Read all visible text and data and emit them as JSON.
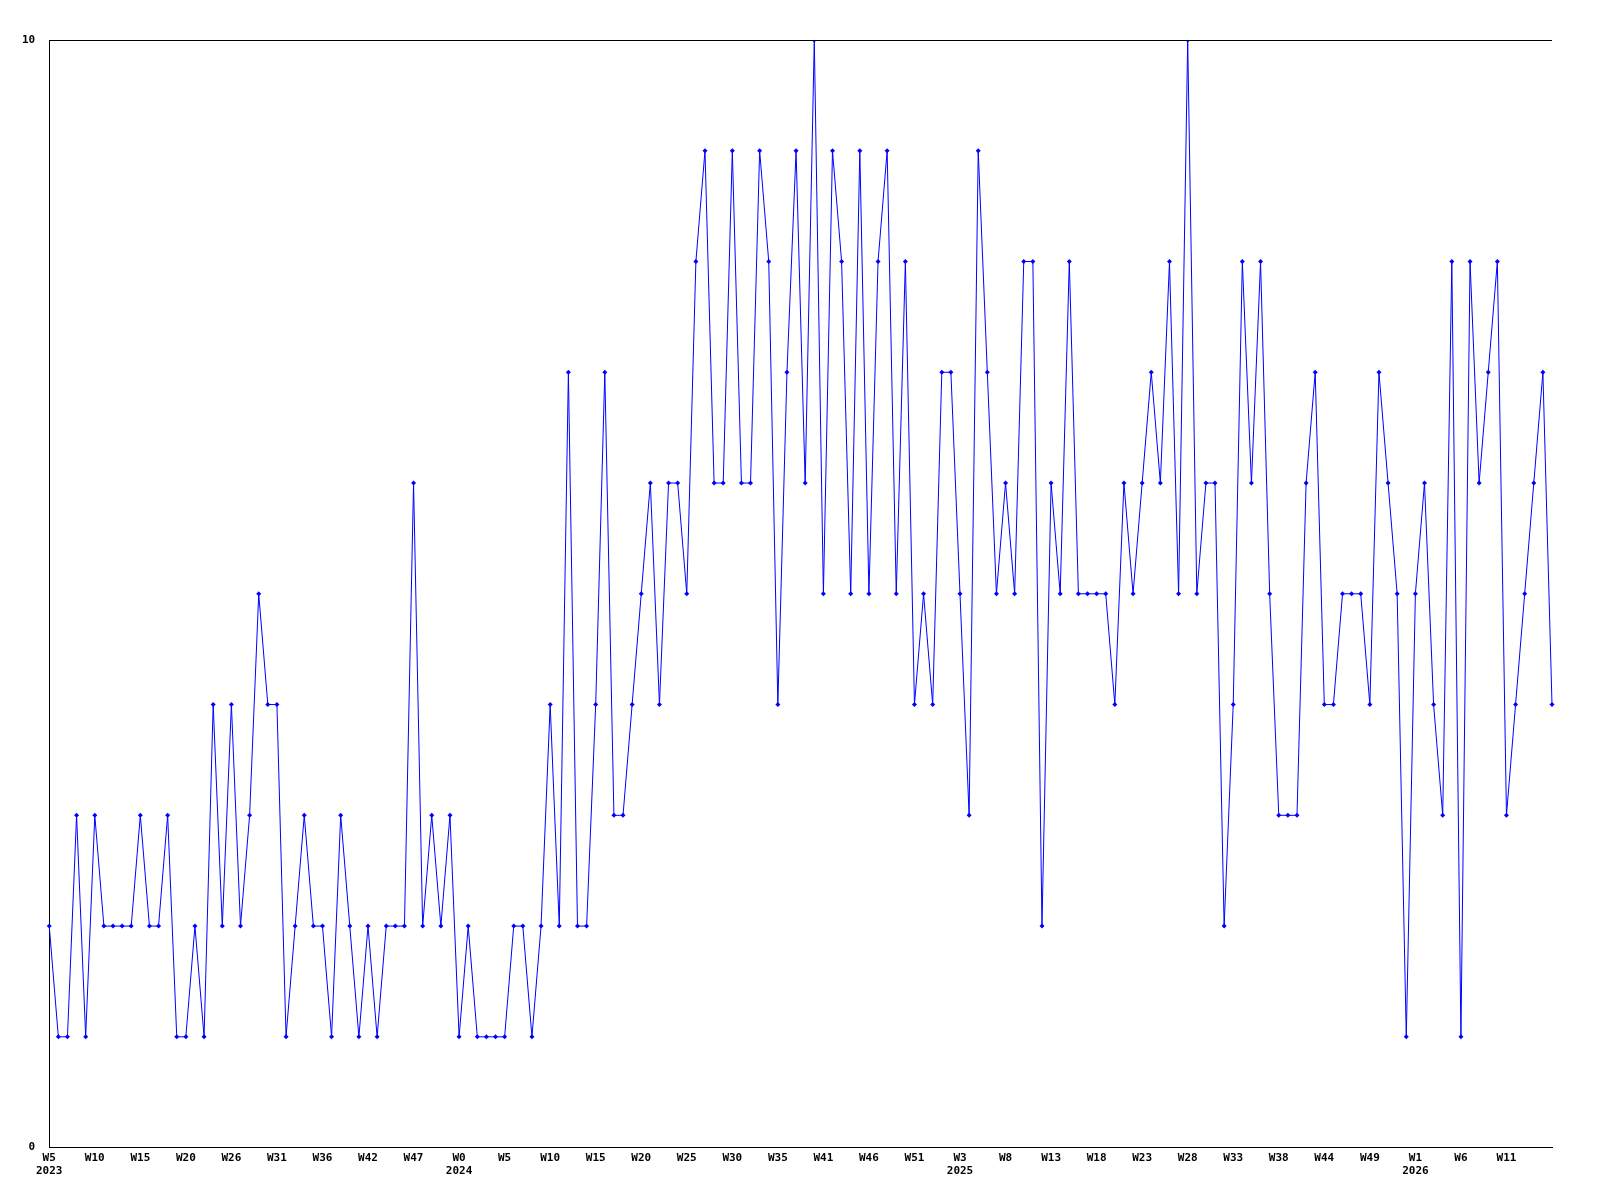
{
  "chart_data": {
    "type": "line",
    "categories": [
      "W5\n2023",
      null,
      null,
      null,
      null,
      "W10",
      null,
      null,
      null,
      null,
      "W15",
      null,
      null,
      null,
      null,
      "W20",
      null,
      null,
      null,
      null,
      "W26",
      null,
      null,
      null,
      null,
      "W31",
      null,
      null,
      null,
      null,
      "W36",
      null,
      null,
      null,
      null,
      "W42",
      null,
      null,
      null,
      null,
      "W47",
      null,
      null,
      null,
      null,
      "W0\n2024",
      null,
      null,
      null,
      null,
      "W5",
      null,
      null,
      null,
      null,
      "W10",
      null,
      null,
      null,
      null,
      "W15",
      null,
      null,
      null,
      null,
      "W20",
      null,
      null,
      null,
      null,
      "W25",
      null,
      null,
      null,
      null,
      "W30",
      null,
      null,
      null,
      null,
      "W35",
      null,
      null,
      null,
      null,
      "W41",
      null,
      null,
      null,
      null,
      "W46",
      null,
      null,
      null,
      null,
      "W51",
      null,
      null,
      null,
      null,
      "W3\n2025",
      null,
      null,
      null,
      null,
      "W8",
      null,
      null,
      null,
      null,
      "W13",
      null,
      null,
      null,
      null,
      "W18",
      null,
      null,
      null,
      null,
      "W23",
      null,
      null,
      null,
      null,
      "W28",
      null,
      null,
      null,
      null,
      "W33",
      null,
      null,
      null,
      null,
      "W38",
      null,
      null,
      null,
      null,
      "W44",
      null,
      null,
      null,
      null,
      "W49",
      null,
      null,
      null,
      null,
      "W1\n2026",
      null,
      null,
      null,
      null,
      "W6",
      null,
      null,
      null,
      null,
      "W11",
      null,
      null,
      null,
      null,
      null
    ],
    "series": [
      {
        "color": "#0000ff",
        "values": [
          2,
          1,
          1,
          3,
          1,
          3,
          2,
          2,
          2,
          2,
          3,
          2,
          2,
          3,
          1,
          1,
          2,
          1,
          4,
          2,
          4,
          2,
          3,
          5,
          4,
          4,
          1,
          2,
          3,
          2,
          2,
          1,
          3,
          2,
          1,
          2,
          1,
          2,
          2,
          2,
          6,
          2,
          3,
          2,
          3,
          1,
          2,
          1,
          1,
          1,
          1,
          2,
          2,
          1,
          2,
          4,
          2,
          7,
          2,
          2,
          4,
          7,
          3,
          3,
          4,
          5,
          6,
          4,
          6,
          6,
          5,
          8,
          9,
          6,
          6,
          9,
          6,
          6,
          9,
          8,
          4,
          7,
          9,
          6,
          10,
          5,
          9,
          8,
          5,
          9,
          5,
          8,
          9,
          5,
          8,
          4,
          5,
          4,
          7,
          7,
          5,
          3,
          9,
          7,
          5,
          6,
          5,
          8,
          8,
          2,
          6,
          5,
          8,
          5,
          5,
          5,
          5,
          4,
          6,
          5,
          6,
          7,
          6,
          8,
          5,
          10,
          5,
          6,
          6,
          2,
          4,
          8,
          6,
          8,
          5,
          3,
          3,
          3,
          6,
          7,
          4,
          4,
          5,
          5,
          5,
          4,
          7,
          6,
          5,
          1,
          5,
          6,
          4,
          3,
          8,
          1,
          8,
          6,
          7,
          8,
          3,
          4,
          5,
          6,
          7,
          4
        ]
      }
    ],
    "ylim": [
      0,
      10
    ],
    "yticks": [
      0,
      10
    ],
    "marker": "diamond",
    "line_style": "solid"
  }
}
